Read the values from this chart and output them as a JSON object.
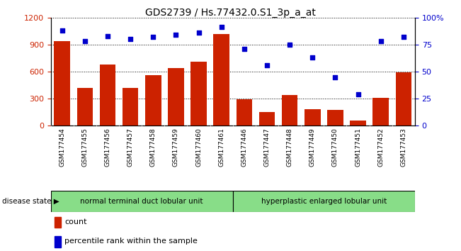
{
  "title": "GDS2739 / Hs.77432.0.S1_3p_a_at",
  "samples": [
    "GSM177454",
    "GSM177455",
    "GSM177456",
    "GSM177457",
    "GSM177458",
    "GSM177459",
    "GSM177460",
    "GSM177461",
    "GSM177446",
    "GSM177447",
    "GSM177448",
    "GSM177449",
    "GSM177450",
    "GSM177451",
    "GSM177452",
    "GSM177453"
  ],
  "counts": [
    940,
    420,
    680,
    420,
    560,
    640,
    710,
    1020,
    290,
    150,
    340,
    185,
    175,
    55,
    310,
    590
  ],
  "percentiles": [
    88,
    78,
    83,
    80,
    82,
    84,
    86,
    91,
    71,
    56,
    75,
    63,
    45,
    29,
    78,
    82
  ],
  "group1_label": "normal terminal duct lobular unit",
  "group2_label": "hyperplastic enlarged lobular unit",
  "group1_count": 8,
  "group2_count": 8,
  "bar_color": "#cc2200",
  "dot_color": "#0000cc",
  "group_bg": "#88dd88",
  "xtick_bg": "#cccccc",
  "ylim_left": [
    0,
    1200
  ],
  "ylim_right": [
    0,
    100
  ],
  "yticks_left": [
    0,
    300,
    600,
    900,
    1200
  ],
  "yticks_right": [
    0,
    25,
    50,
    75,
    100
  ],
  "legend_count_label": "count",
  "legend_pct_label": "percentile rank within the sample",
  "disease_state_label": "disease state"
}
